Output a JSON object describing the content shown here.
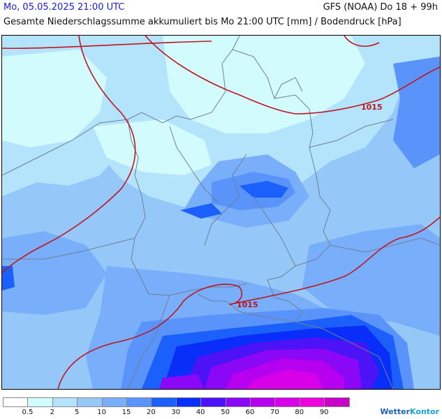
{
  "header": {
    "date": "Mo, 05.05.2025 21:00 UTC",
    "model_run": "GFS (NOAA) Do 18 + 99h",
    "subtitle": "Gesamte Niederschlagssumme akkumuliert bis Mo 21:00 UTC [mm] / Bodendruck [hPa]"
  },
  "map": {
    "isobar_labels": [
      {
        "text": "1015",
        "key": "north"
      },
      {
        "text": "1015",
        "key": "south"
      }
    ],
    "isobar_color": "#c0141e",
    "border_color": "#6f7f95"
  },
  "legend": {
    "labels": [
      "0.5",
      "2",
      "5",
      "10",
      "15",
      "20",
      "30",
      "40",
      "50",
      "60",
      "70",
      "80",
      "90"
    ],
    "colors": [
      "#ffffff",
      "#d2fbfd",
      "#b4e4fb",
      "#95c8f9",
      "#78aefa",
      "#5a94fa",
      "#1c60fb",
      "#0a2ef9",
      "#4c13f7",
      "#8a08f5",
      "#b800f1",
      "#d800e8",
      "#ee00de",
      "#c800c8"
    ]
  },
  "brand": {
    "name_part1": "Wetter",
    "name_part2": "Kontor"
  }
}
